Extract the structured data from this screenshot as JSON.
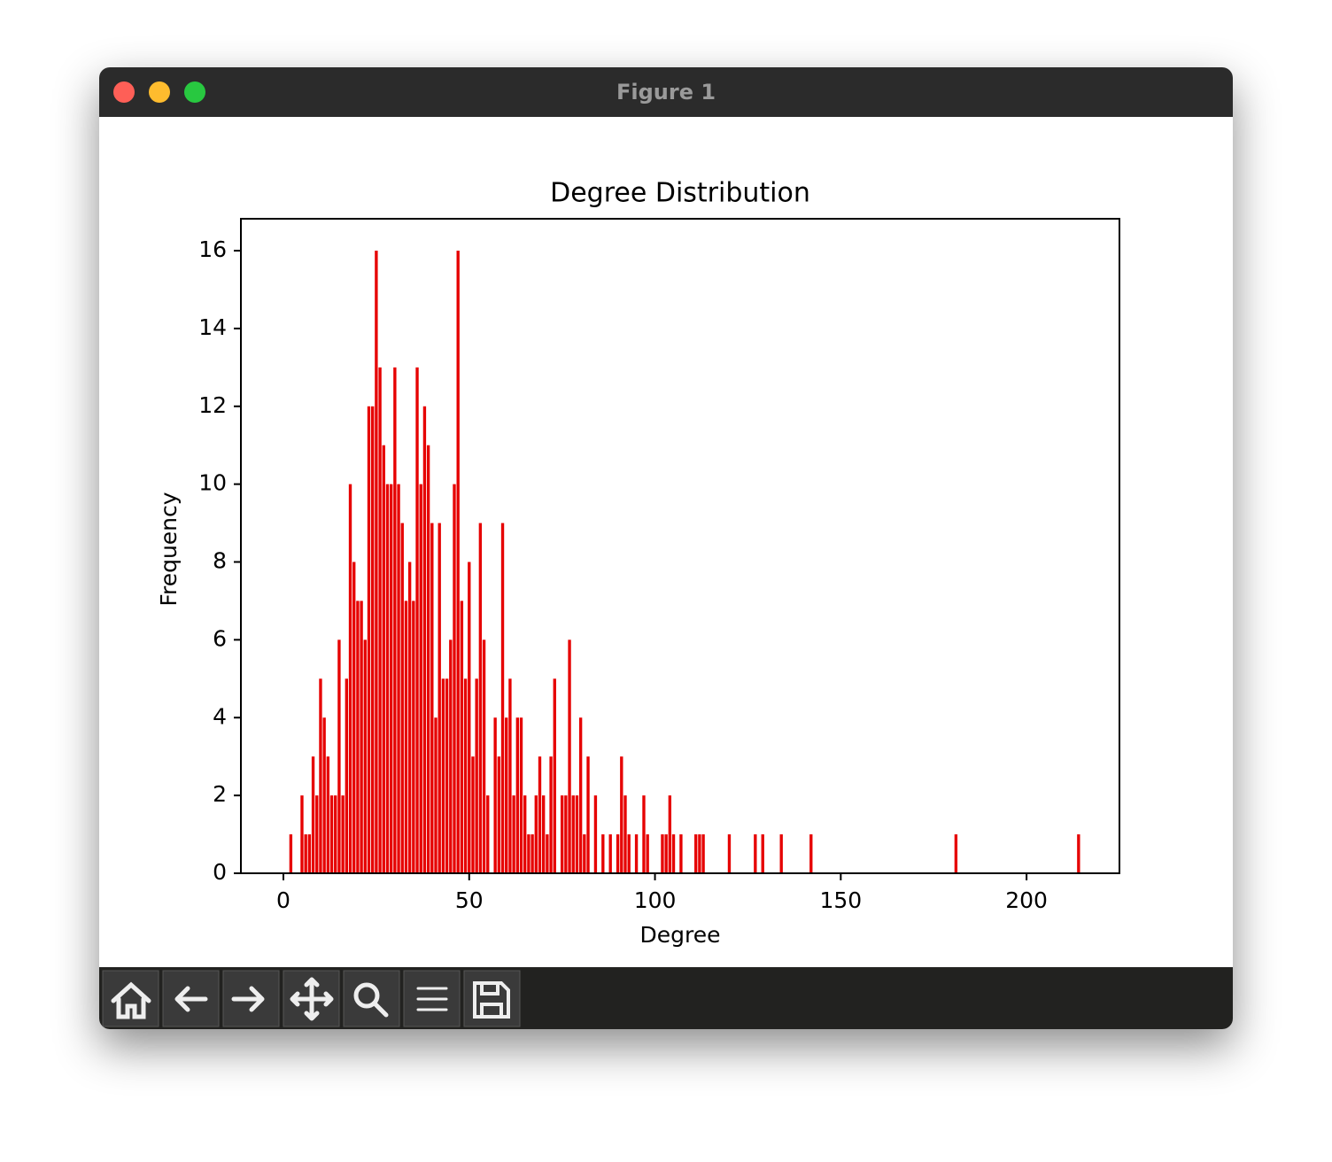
{
  "window": {
    "title": "Figure 1"
  },
  "chart_data": {
    "type": "bar",
    "title": "Degree Distribution",
    "x_label": "Degree",
    "y_label": "Frequency",
    "color": "#e60000",
    "x": [
      2,
      5,
      6,
      7,
      8,
      9,
      10,
      11,
      12,
      13,
      14,
      15,
      16,
      17,
      18,
      19,
      20,
      21,
      22,
      23,
      24,
      25,
      26,
      27,
      28,
      29,
      30,
      31,
      32,
      33,
      34,
      35,
      36,
      37,
      38,
      39,
      40,
      41,
      42,
      43,
      44,
      45,
      46,
      47,
      48,
      49,
      50,
      51,
      52,
      53,
      54,
      55,
      57,
      58,
      59,
      60,
      61,
      62,
      63,
      64,
      65,
      66,
      67,
      68,
      69,
      70,
      71,
      72,
      73,
      75,
      76,
      77,
      78,
      79,
      80,
      81,
      82,
      84,
      86,
      88,
      90,
      91,
      92,
      93,
      95,
      97,
      98,
      102,
      103,
      104,
      105,
      107,
      111,
      112,
      113,
      120,
      127,
      129,
      134,
      142,
      181,
      214
    ],
    "values": [
      1,
      2,
      1,
      1,
      3,
      2,
      5,
      4,
      3,
      2,
      2,
      6,
      2,
      5,
      10,
      8,
      7,
      7,
      6,
      12,
      12,
      16,
      13,
      11,
      10,
      10,
      13,
      10,
      9,
      7,
      8,
      7,
      13,
      10,
      12,
      11,
      9,
      4,
      9,
      5,
      5,
      6,
      10,
      16,
      7,
      5,
      8,
      3,
      5,
      9,
      6,
      2,
      4,
      3,
      9,
      4,
      5,
      2,
      4,
      4,
      2,
      1,
      1,
      2,
      3,
      2,
      1,
      3,
      5,
      2,
      2,
      6,
      2,
      2,
      4,
      1,
      3,
      2,
      1,
      1,
      1,
      3,
      2,
      1,
      1,
      2,
      1,
      1,
      1,
      2,
      1,
      1,
      1,
      1,
      1,
      1,
      1,
      1,
      1,
      1,
      1,
      1
    ],
    "xlim": [
      -11.44,
      225
    ],
    "ylim": [
      0,
      16.82
    ],
    "xticks": [
      0,
      50,
      100,
      150,
      200
    ],
    "yticks": [
      0,
      2,
      4,
      6,
      8,
      10,
      12,
      14,
      16
    ]
  }
}
